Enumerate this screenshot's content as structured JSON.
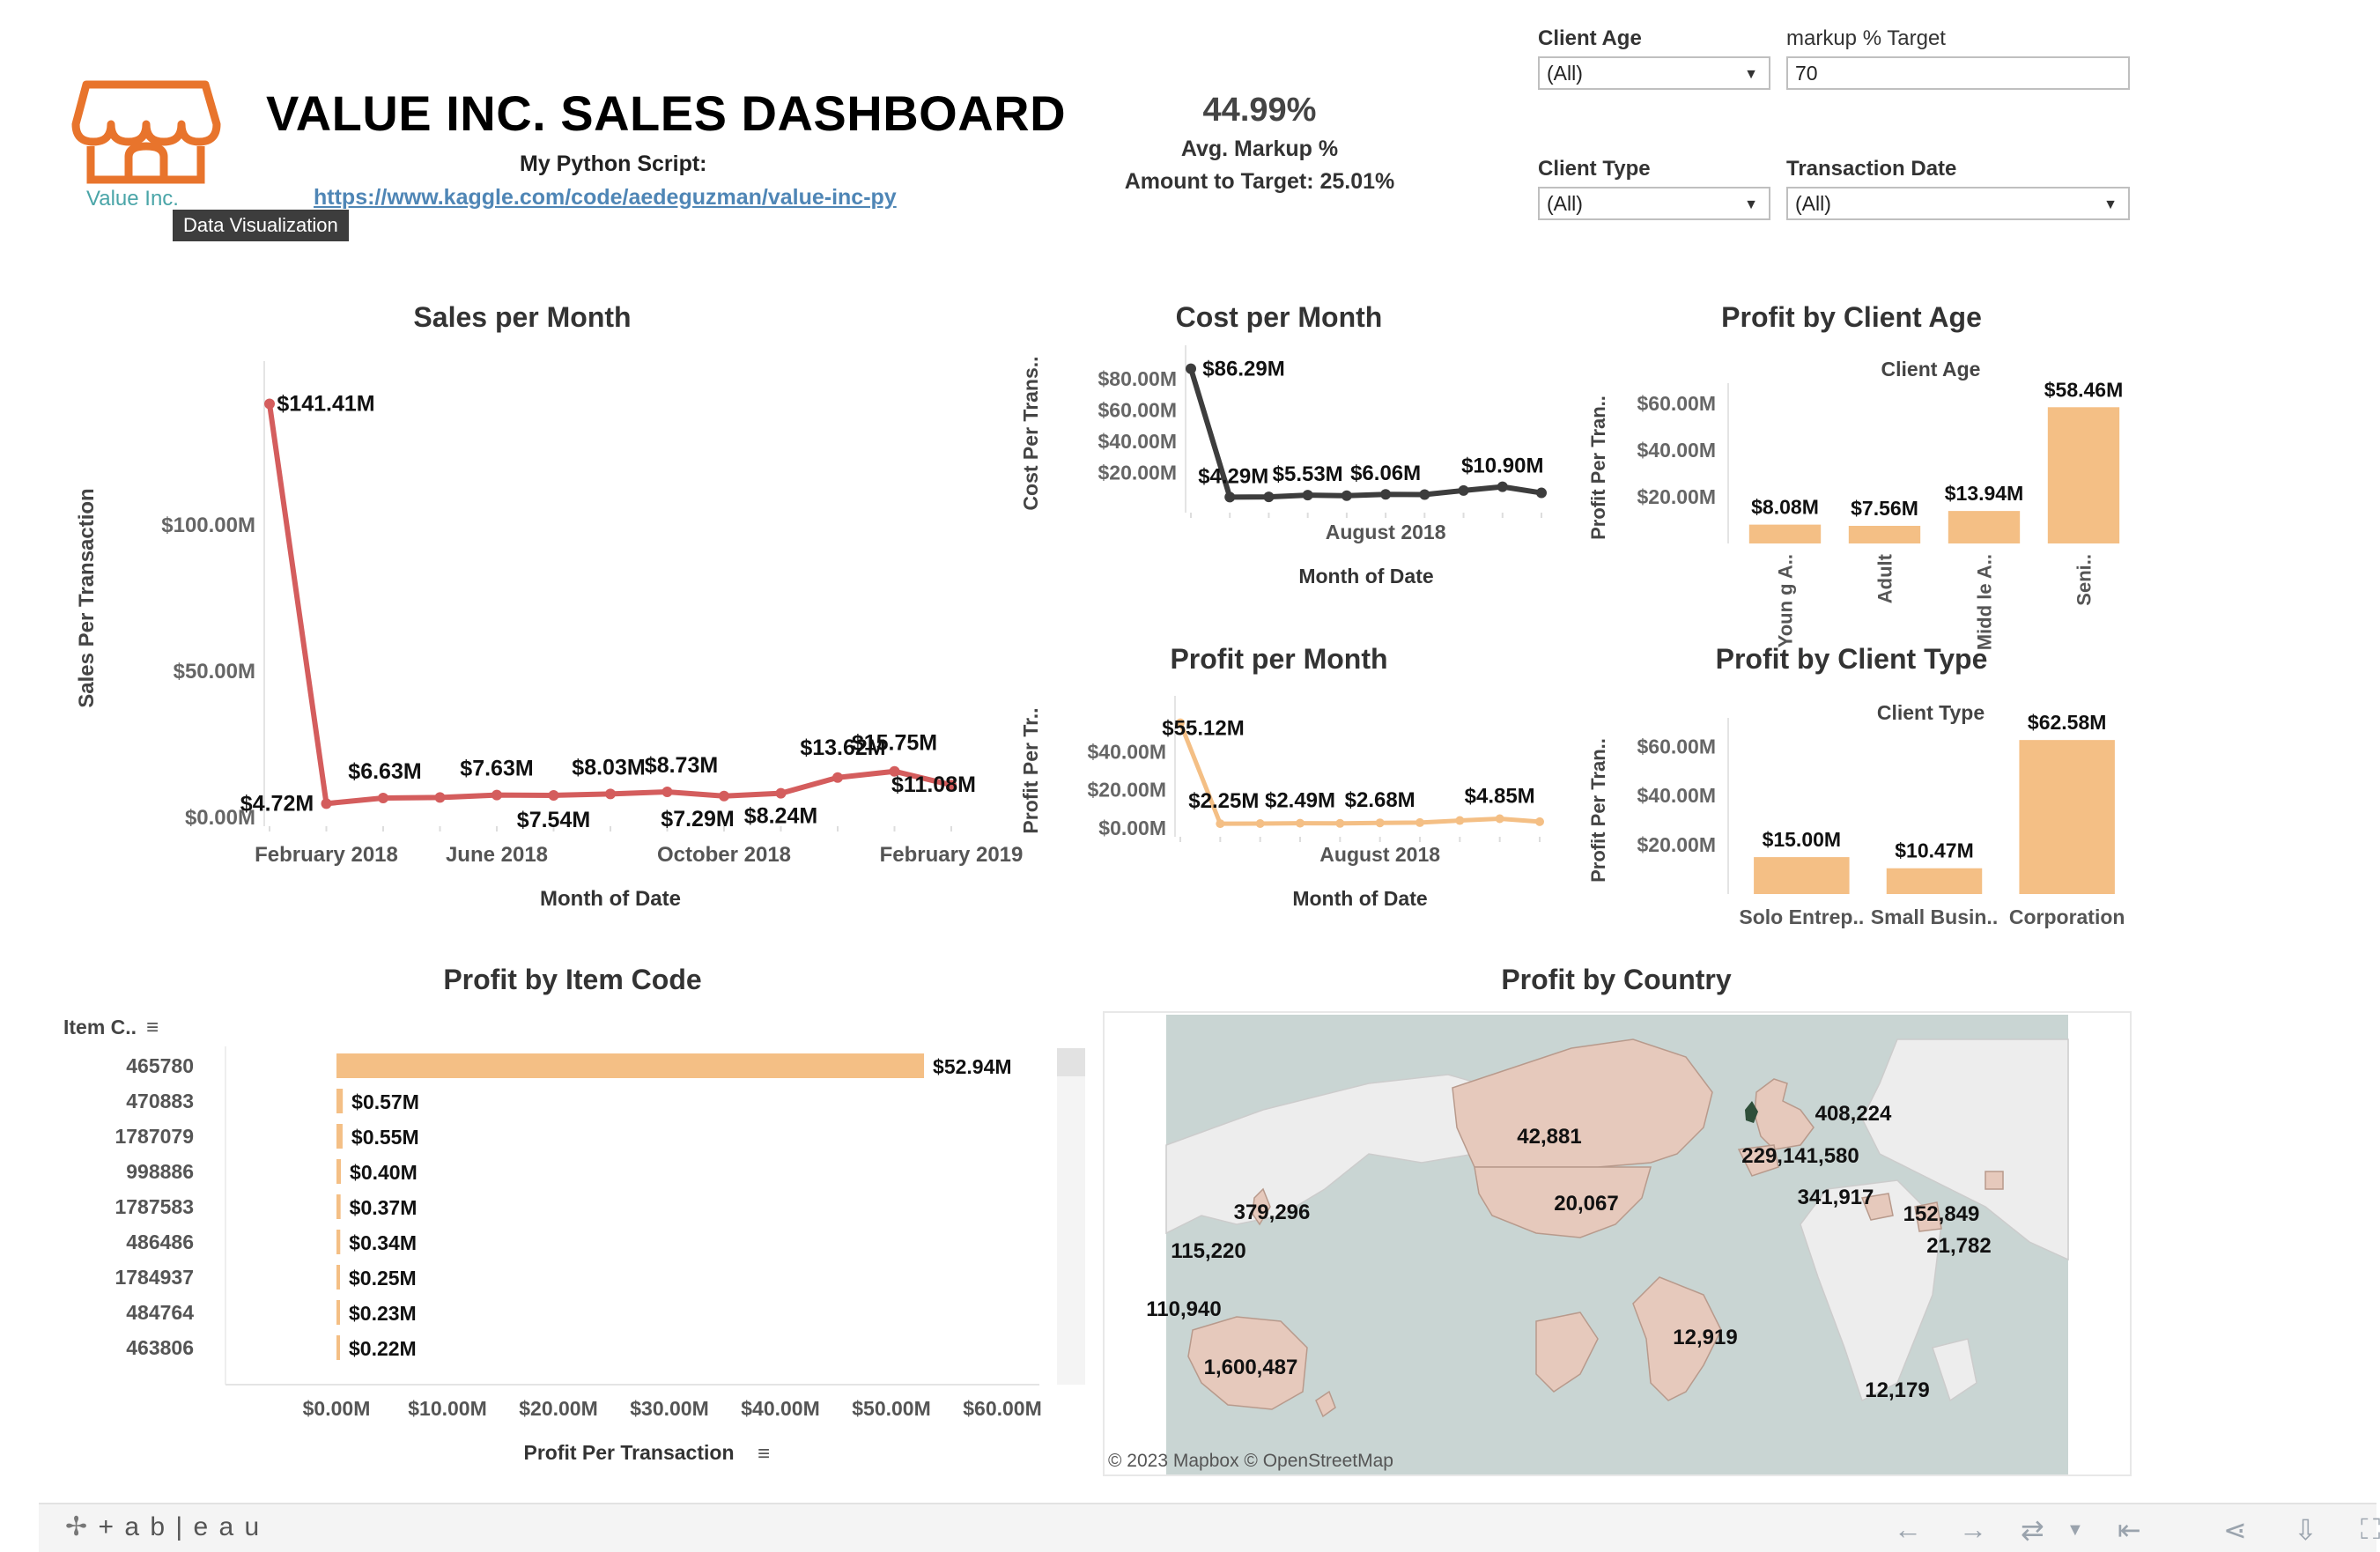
{
  "header": {
    "title": "VALUE INC. SALES DASHBOARD",
    "script_label": "My Python Script:",
    "script_link": "https://www.kaggle.com/code/aedeguzman/value-inc-py",
    "logo_text": "Value Inc.",
    "tooltip": "Data Visualization"
  },
  "kpi": {
    "value": "44.99%",
    "label": "Avg. Markup %",
    "target_text": "Amount to Target: 25.01%"
  },
  "filters": {
    "client_age": {
      "label": "Client Age",
      "value": "(All)"
    },
    "markup_target": {
      "label": "markup % Target",
      "value": "70"
    },
    "client_type": {
      "label": "Client Type",
      "value": "(All)"
    },
    "transaction_date": {
      "label": "Transaction Date",
      "value": "(All)"
    }
  },
  "colors": {
    "sales_line": "#d45d5d",
    "cost_line": "#3d3d3d",
    "profit": "#f4bf85",
    "map_land": "#e6c9bc",
    "map_water": "#c9d5d3",
    "uk": "#2f4f3a"
  },
  "chart_data": [
    {
      "id": "sales",
      "type": "line",
      "title": "Sales per Month",
      "xlabel": "Month of Date",
      "ylabel": "Sales Per Transaction",
      "x_ticks": [
        "February 2018",
        "June 2018",
        "October 2018",
        "February 2019"
      ],
      "y_ticks": [
        "$0.00M",
        "$50.00M",
        "$100.00M"
      ],
      "ylim": [
        0,
        150
      ],
      "values": [
        141.41,
        4.72,
        6.63,
        6.8,
        7.63,
        7.54,
        8.03,
        8.73,
        7.29,
        8.24,
        13.62,
        15.75,
        11.08
      ],
      "labels": [
        "$141.41M",
        "$4.72M",
        "$6.63M",
        "",
        "$7.63M",
        "$7.54M",
        "$8.03M",
        "$8.73M",
        "$7.29M",
        "$8.24M",
        "$13.62M",
        "$15.75M",
        "$11.08M"
      ]
    },
    {
      "id": "cost",
      "type": "line",
      "title": "Cost per Month",
      "xlabel": "Month of Date",
      "ylabel": "Cost Per Trans..",
      "x_ticks": [
        "August 2018"
      ],
      "y_ticks": [
        "$20.00M",
        "$40.00M",
        "$60.00M",
        "$80.00M"
      ],
      "ylim": [
        0,
        90
      ],
      "values": [
        86.29,
        4.29,
        4.4,
        5.53,
        5.2,
        6.06,
        5.9,
        8.5,
        10.9,
        7.0
      ],
      "labels": [
        "$86.29M",
        "$4.29M",
        "",
        "$5.53M",
        "",
        "$6.06M",
        "",
        "",
        "$10.90M",
        ""
      ]
    },
    {
      "id": "profit_month",
      "type": "line",
      "title": "Profit per Month",
      "xlabel": "Month of Date",
      "ylabel": "Profit Per Tr..",
      "x_ticks": [
        "August 2018"
      ],
      "y_ticks": [
        "$0.00M",
        "$20.00M",
        "$40.00M"
      ],
      "ylim": [
        0,
        60
      ],
      "values": [
        55.12,
        2.25,
        2.3,
        2.49,
        2.4,
        2.68,
        2.8,
        3.9,
        4.85,
        3.3
      ],
      "labels": [
        "$55.12M",
        "$2.25M",
        "",
        "$2.49M",
        "",
        "$2.68M",
        "",
        "",
        "$4.85M",
        ""
      ]
    },
    {
      "id": "profit_age",
      "type": "bar",
      "title": "Profit by Client Age",
      "header": "Client Age",
      "ylabel": "Profit Per Tran..",
      "categories": [
        "Youn g A..",
        "Adult",
        "Midd le A..",
        "Seni.."
      ],
      "values": [
        8.08,
        7.56,
        13.94,
        58.46
      ],
      "labels": [
        "$8.08M",
        "$7.56M",
        "$13.94M",
        "$58.46M"
      ],
      "y_ticks": [
        "$20.00M",
        "$40.00M",
        "$60.00M"
      ],
      "ylim": [
        0,
        65
      ]
    },
    {
      "id": "profit_type",
      "type": "bar",
      "title": "Profit by Client Type",
      "header": "Client Type",
      "ylabel": "Profit Per Tran..",
      "categories": [
        "Solo Entrep..",
        "Small Busin..",
        "Corporation"
      ],
      "values": [
        15.0,
        10.47,
        62.58
      ],
      "labels": [
        "$15.00M",
        "$10.47M",
        "$62.58M"
      ],
      "y_ticks": [
        "$20.00M",
        "$40.00M",
        "$60.00M"
      ],
      "ylim": [
        0,
        68
      ]
    },
    {
      "id": "profit_item",
      "type": "bar",
      "orientation": "horizontal",
      "title": "Profit by Item Code",
      "header": "Item C..",
      "xlabel": "Profit Per Transaction",
      "categories": [
        "465780",
        "470883",
        "1787079",
        "998886",
        "1787583",
        "486486",
        "1784937",
        "484764",
        "463806"
      ],
      "values": [
        52.94,
        0.57,
        0.55,
        0.4,
        0.37,
        0.34,
        0.25,
        0.23,
        0.22
      ],
      "labels": [
        "$52.94M",
        "$0.57M",
        "$0.55M",
        "$0.40M",
        "$0.37M",
        "$0.34M",
        "$0.25M",
        "$0.23M",
        "$0.22M"
      ],
      "x_ticks": [
        "$0.00M",
        "$10.00M",
        "$20.00M",
        "$30.00M",
        "$40.00M",
        "$50.00M",
        "$60.00M"
      ],
      "xlim": [
        0,
        60
      ]
    }
  ],
  "map": {
    "title": "Profit by Country",
    "attribution": "© 2023 Mapbox © OpenStreetMap",
    "labels": [
      "42,881",
      "20,067",
      "408,224",
      "229,141,580",
      "341,917",
      "152,849",
      "21,782",
      "379,296",
      "115,220",
      "110,940",
      "1,600,487",
      "12,919",
      "12,179"
    ]
  },
  "footer": {
    "brand": "+ a b | e a u"
  }
}
